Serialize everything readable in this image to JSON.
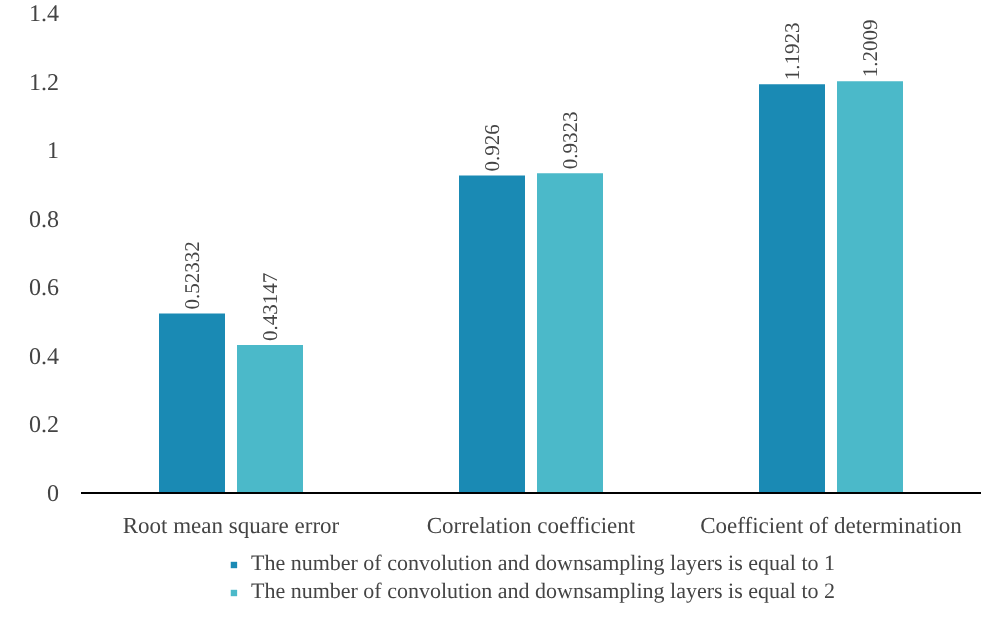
{
  "chart_data": {
    "type": "bar",
    "categories": [
      "Root mean square error",
      "Correlation coefficient",
      "Coefficient of determination"
    ],
    "series": [
      {
        "name": "The number of convolution and downsampling layers is equal to 1",
        "color": "#1a8ab4",
        "values": [
          0.52332,
          0.926,
          1.1923
        ]
      },
      {
        "name": "The number of convolution and downsampling layers is equal to 2",
        "color": "#4bb9c9",
        "values": [
          0.43147,
          0.9323,
          1.2009
        ]
      }
    ],
    "ylim": [
      0,
      1.4
    ],
    "yticks": [
      0,
      0.2,
      0.4,
      0.6,
      0.8,
      1,
      1.2,
      1.4
    ],
    "data_labels": true,
    "grid": false,
    "legend": "bottom"
  }
}
